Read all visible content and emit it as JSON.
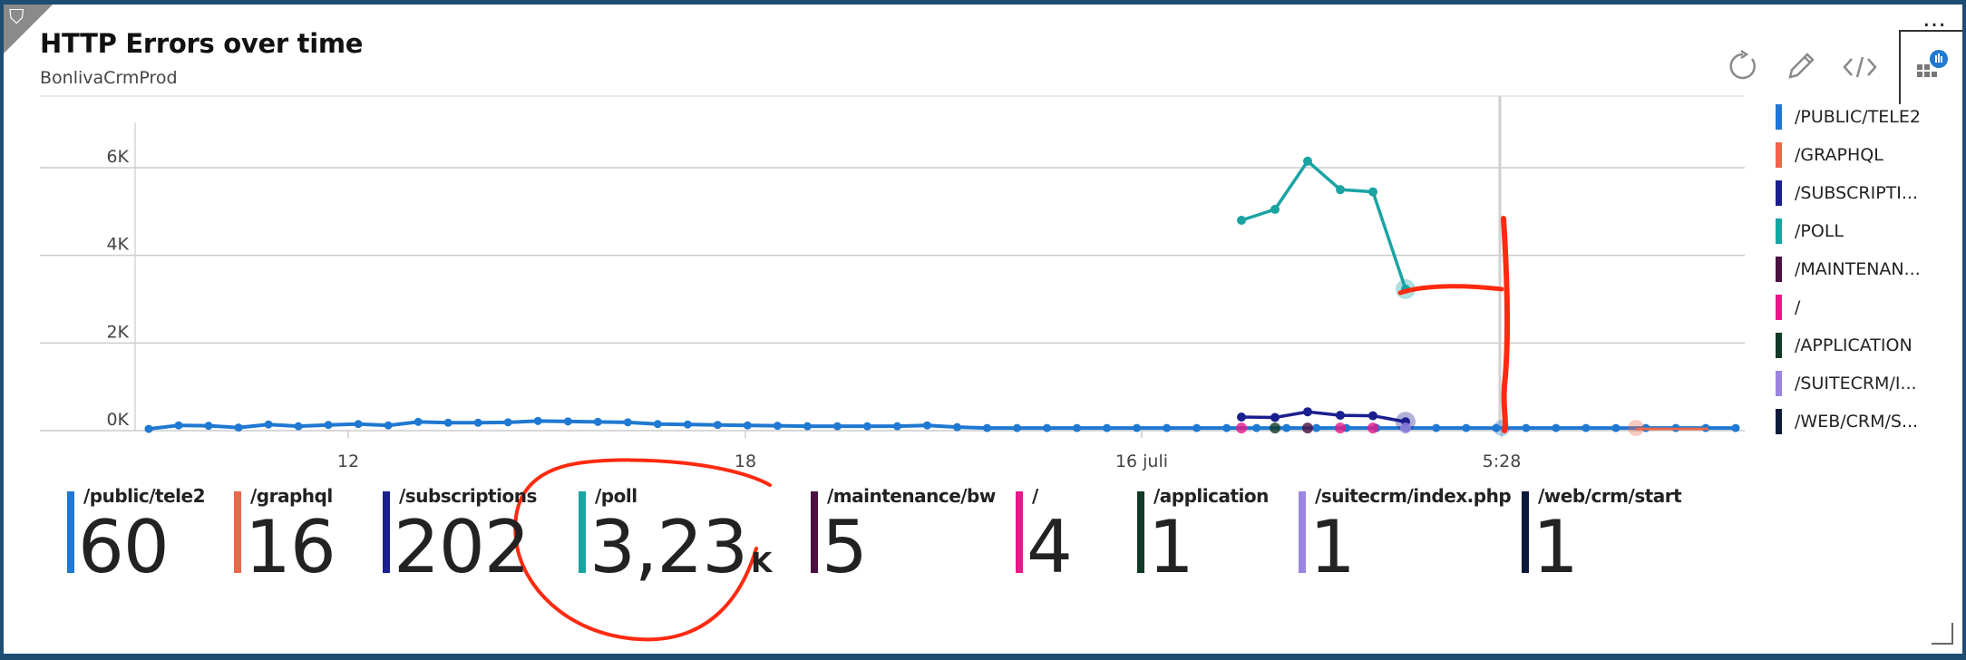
{
  "tile": {
    "title": "HTTP Errors over time",
    "subtitle": "BonlivaCrmProd"
  },
  "toolbar": {
    "more": "…",
    "refresh_icon": "refresh-icon",
    "edit_icon": "pencil-icon",
    "code_icon": "code-icon",
    "insights_icon": "app-insights-icon"
  },
  "chart_data": {
    "type": "line",
    "ylim": [
      0,
      7000
    ],
    "yticks": [
      "6K",
      "4K",
      "2K",
      "0K"
    ],
    "xticks": [
      "12",
      "18",
      "16 juli",
      "5:28"
    ],
    "series": [
      {
        "name": "/PUBLIC/TELE2",
        "color": "#1f78d1",
        "values": [
          40,
          120,
          110,
          70,
          140,
          100,
          130,
          150,
          120,
          200,
          180,
          180,
          190,
          220,
          210,
          200,
          190,
          150,
          140,
          130,
          120,
          110,
          100,
          100,
          100,
          100,
          120,
          80,
          60,
          60,
          60,
          60,
          60,
          60,
          60,
          60,
          60,
          60,
          60,
          60,
          60,
          60,
          60,
          60,
          60,
          60,
          60,
          60,
          60,
          60,
          60,
          60,
          60,
          60
        ]
      },
      {
        "name": "/POLL",
        "color": "#1aa3a3",
        "values": [
          4800,
          5050,
          6150,
          5500,
          5450,
          3230
        ]
      },
      {
        "name": "/SUBSCRIPTIONS",
        "color": "#1a1f8f",
        "values": [
          310,
          300,
          430,
          350,
          340,
          202
        ]
      }
    ]
  },
  "legend": [
    {
      "label": "/PUBLIC/TELE2",
      "color": "#1f78d1"
    },
    {
      "label": "/GRAPHQL",
      "color": "#e8684a"
    },
    {
      "label": "/SUBSCRIPTI...",
      "color": "#1a1f8f"
    },
    {
      "label": "/POLL",
      "color": "#1aa3a3"
    },
    {
      "label": "/MAINTENAN...",
      "color": "#4a1042"
    },
    {
      "label": "/",
      "color": "#e6198a"
    },
    {
      "label": "/APPLICATION",
      "color": "#0f3a25"
    },
    {
      "label": "/SUITECRM/I...",
      "color": "#9b85e0"
    },
    {
      "label": "/WEB/CRM/S...",
      "color": "#0c1a3a"
    }
  ],
  "metrics": [
    {
      "label": "/public/tele2",
      "value": "60",
      "unit": "",
      "color": "#1f78d1"
    },
    {
      "label": "/graphql",
      "value": "16",
      "unit": "",
      "color": "#e8684a"
    },
    {
      "label": "/subscriptions",
      "value": "202",
      "unit": "",
      "color": "#1a1f8f"
    },
    {
      "label": "/poll",
      "value": "3,23",
      "unit": "K",
      "color": "#1aa3a3"
    },
    {
      "label": "/maintenance/bw",
      "value": "5",
      "unit": "",
      "color": "#4a1042"
    },
    {
      "label": "/",
      "value": "4",
      "unit": "",
      "color": "#e6198a"
    },
    {
      "label": "/application",
      "value": "1",
      "unit": "",
      "color": "#0f3a25"
    },
    {
      "label": "/suitecrm/index.php",
      "value": "1",
      "unit": "",
      "color": "#9b85e0"
    },
    {
      "label": "/web/crm/start",
      "value": "1",
      "unit": "",
      "color": "#0c1a3a"
    }
  ],
  "annotation_color": "#ff2a10"
}
